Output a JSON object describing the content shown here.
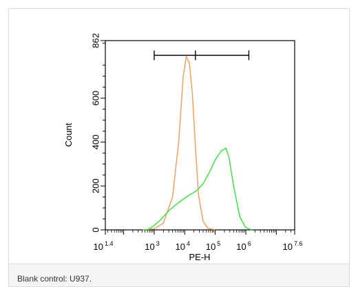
{
  "caption": "Blank control: U937.",
  "chart_data": {
    "type": "line",
    "xlabel": "PE-H",
    "ylabel": "Count",
    "x_scale": "log10",
    "xlim": [
      1.4,
      7.6
    ],
    "ylim": [
      0,
      862
    ],
    "x_ticks": [
      {
        "base": "10",
        "exp": "1.4",
        "value": 1.4
      },
      {
        "base": "10",
        "exp": "3",
        "value": 3
      },
      {
        "base": "10",
        "exp": "4",
        "value": 4
      },
      {
        "base": "10",
        "exp": "5",
        "value": 5
      },
      {
        "base": "10",
        "exp": "6",
        "value": 6
      },
      {
        "base": "10",
        "exp": "7.6",
        "value": 7.6
      }
    ],
    "y_ticks": [
      {
        "label": "0",
        "value": 0
      },
      {
        "label": "200",
        "value": 200
      },
      {
        "label": "400",
        "value": 400
      },
      {
        "label": "600",
        "value": 600
      },
      {
        "label": "862",
        "value": 862
      }
    ],
    "gate_marker": {
      "x_start": 3.0,
      "x_mid": 4.35,
      "x_end": 6.1,
      "y": 795
    },
    "series": [
      {
        "color": "#f0a060",
        "x": [
          2.6,
          3.0,
          3.3,
          3.6,
          3.8,
          3.95,
          4.05,
          4.15,
          4.25,
          4.35,
          4.45,
          4.6,
          4.75,
          5.0
        ],
        "y": [
          0,
          5,
          30,
          150,
          400,
          700,
          790,
          760,
          620,
          380,
          160,
          40,
          8,
          0
        ]
      },
      {
        "color": "#44dd44",
        "x": [
          2.6,
          2.8,
          3.0,
          3.2,
          3.5,
          3.8,
          4.1,
          4.4,
          4.6,
          4.8,
          5.0,
          5.2,
          5.35,
          5.45,
          5.6,
          5.8,
          6.0,
          6.2
        ],
        "y": [
          0,
          2,
          20,
          45,
          90,
          125,
          155,
          180,
          210,
          260,
          320,
          360,
          372,
          330,
          200,
          60,
          10,
          0
        ]
      }
    ]
  }
}
